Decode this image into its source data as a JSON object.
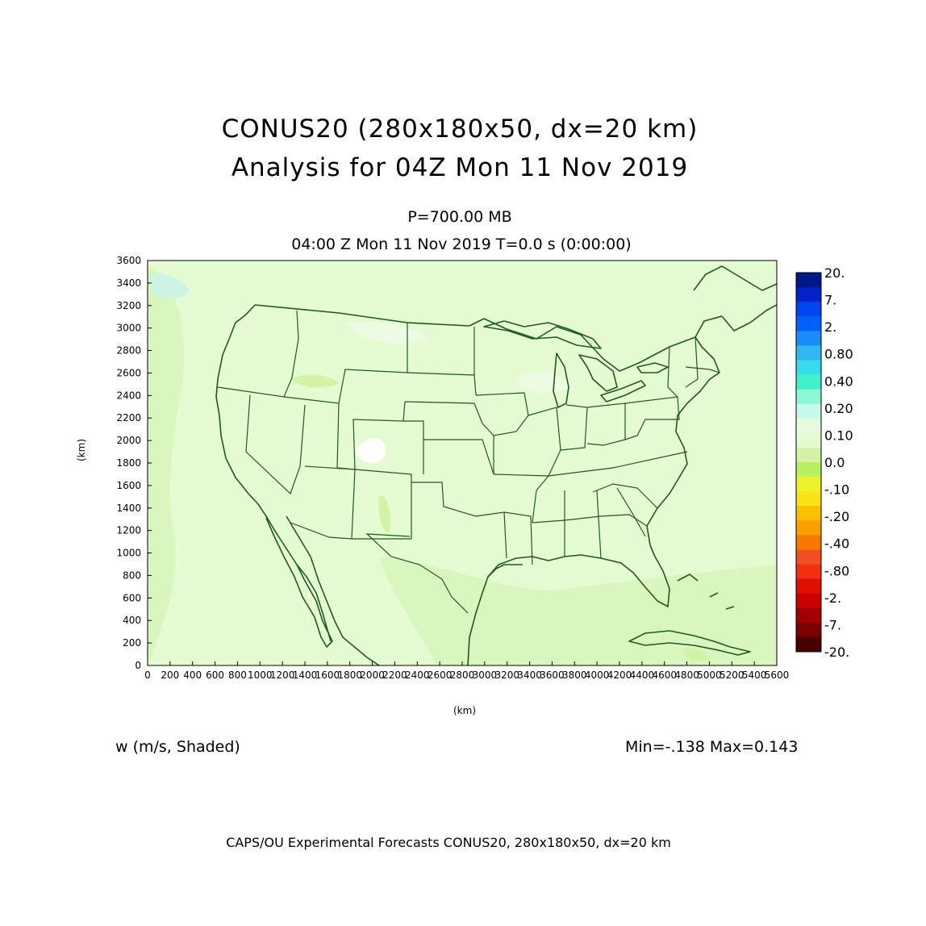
{
  "title": {
    "line1": "CONUS20 (280x180x50, dx=20 km)",
    "line2": "Analysis for 04Z Mon 11 Nov 2019"
  },
  "subtitle": {
    "level": "P=700.00 MB",
    "time": "04:00 Z Mon 11 Nov 2019    T=0.0 s (0:00:00)"
  },
  "axes": {
    "x_unit": "(km)",
    "y_unit": "(km)",
    "x_range": [
      0,
      5600
    ],
    "y_range": [
      0,
      3600
    ],
    "x_ticks": [
      "0",
      "200",
      "400",
      "600",
      "800",
      "1000",
      "1200",
      "1400",
      "1600",
      "1800",
      "2000",
      "2200",
      "2400",
      "2600",
      "2800",
      "3000",
      "3200",
      "3400",
      "3600",
      "3800",
      "4000",
      "4200",
      "4400",
      "4600",
      "4800",
      "5000",
      "5200",
      "5400",
      "5600"
    ],
    "y_ticks": [
      "0",
      "200",
      "400",
      "600",
      "800",
      "1000",
      "1200",
      "1400",
      "1600",
      "1800",
      "2000",
      "2200",
      "2400",
      "2600",
      "2800",
      "3000",
      "3200",
      "3400",
      "3600"
    ]
  },
  "field": {
    "label": "w (m/s, Shaded)",
    "minmax": "Min=-.138 Max=0.143",
    "dominant_shade": "#e5fbd1"
  },
  "colorbar": {
    "labels": [
      "20.",
      "7.",
      "2.",
      "0.80",
      "0.40",
      "0.20",
      "0.10",
      "0.0",
      "-.10",
      "-.20",
      "-.40",
      "-.80",
      "-2.",
      "-7.",
      "-20."
    ],
    "colors": [
      "#00188a",
      "#0022c8",
      "#0044ee",
      "#0062f8",
      "#1a8cf8",
      "#2fb8f2",
      "#36dcea",
      "#40f0cc",
      "#8cf8d8",
      "#c6f8ec",
      "#e6fae0",
      "#e5fbd1",
      "#d2f4a4",
      "#b8f060",
      "#ecf22c",
      "#f8e418",
      "#fcc000",
      "#fca000",
      "#f87800",
      "#f05020",
      "#f03010",
      "#e01000",
      "#c80000",
      "#a00000",
      "#7a0000",
      "#4a0000"
    ]
  },
  "footer": "CAPS/OU Experimental Forecasts  CONUS20, 280x180x50, dx=20 km"
}
